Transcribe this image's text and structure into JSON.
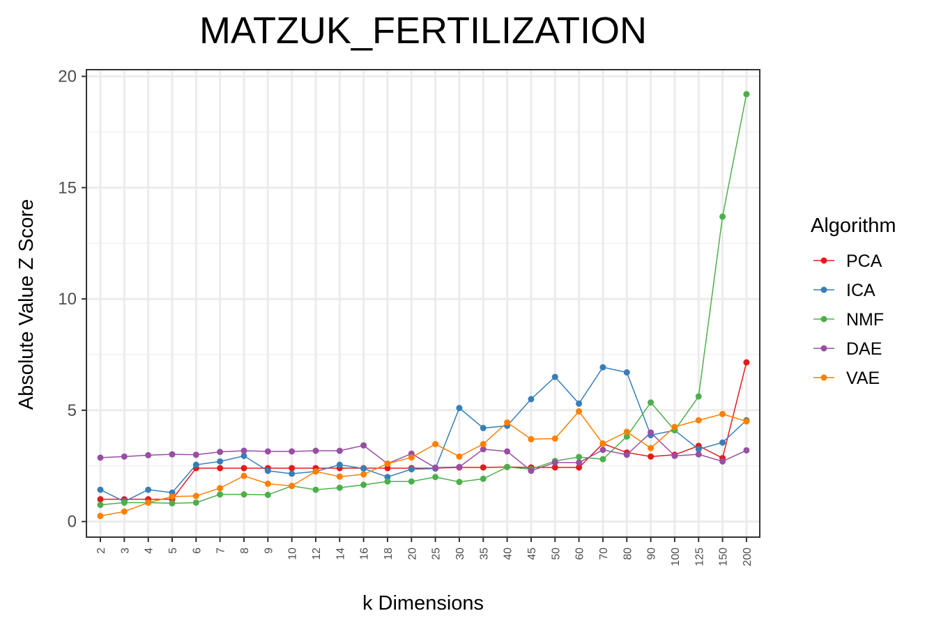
{
  "chart_data": {
    "type": "line",
    "title": "MATZUK_FERTILIZATION",
    "xlabel": "k Dimensions",
    "ylabel": "Absolute Value Z Score",
    "ylim": [
      -0.7,
      20.3
    ],
    "yticks": [
      0,
      5,
      10,
      15,
      20
    ],
    "grid": true,
    "legend": {
      "title": "Algorithm",
      "position": "right"
    },
    "categories": [
      "2",
      "3",
      "4",
      "5",
      "6",
      "7",
      "8",
      "9",
      "10",
      "12",
      "14",
      "16",
      "18",
      "20",
      "25",
      "30",
      "35",
      "40",
      "45",
      "50",
      "60",
      "70",
      "80",
      "90",
      "100",
      "125",
      "150",
      "200"
    ],
    "series": [
      {
        "name": "PCA",
        "color": "#e41a1c",
        "values": [
          1.0,
          1.0,
          1.0,
          1.0,
          2.4,
          2.4,
          2.4,
          2.4,
          2.4,
          2.4,
          2.4,
          2.4,
          2.4,
          2.4,
          2.4,
          2.43,
          2.43,
          2.45,
          2.43,
          2.43,
          2.43,
          3.5,
          3.1,
          2.92,
          3.0,
          3.4,
          2.85,
          7.15
        ]
      },
      {
        "name": "ICA",
        "color": "#377eb8",
        "values": [
          1.43,
          0.9,
          1.43,
          1.3,
          2.55,
          2.7,
          2.95,
          2.28,
          2.15,
          2.25,
          2.55,
          2.38,
          2.0,
          2.35,
          2.38,
          5.1,
          4.2,
          4.3,
          5.5,
          6.5,
          5.3,
          6.93,
          6.7,
          3.88,
          4.1,
          3.25,
          3.55,
          4.55
        ]
      },
      {
        "name": "NMF",
        "color": "#4daf4a",
        "values": [
          0.75,
          0.85,
          0.85,
          0.82,
          0.85,
          1.22,
          1.22,
          1.2,
          1.6,
          1.43,
          1.52,
          1.65,
          1.8,
          1.8,
          2.0,
          1.78,
          1.92,
          2.45,
          2.35,
          2.72,
          2.9,
          2.8,
          3.82,
          5.35,
          4.1,
          5.62,
          13.7,
          19.2
        ]
      },
      {
        "name": "DAE",
        "color": "#984ea3",
        "values": [
          2.87,
          2.92,
          2.98,
          3.02,
          3.0,
          3.13,
          3.18,
          3.15,
          3.15,
          3.18,
          3.18,
          3.42,
          2.6,
          3.05,
          2.42,
          2.45,
          3.25,
          3.15,
          2.28,
          2.65,
          2.65,
          3.22,
          3.0,
          4.0,
          2.95,
          3.02,
          2.7,
          3.2
        ]
      },
      {
        "name": "VAE",
        "color": "#ff7f00",
        "values": [
          0.25,
          0.45,
          0.85,
          1.12,
          1.15,
          1.5,
          2.05,
          1.7,
          1.6,
          2.25,
          2.02,
          2.12,
          2.6,
          2.88,
          3.48,
          2.92,
          3.48,
          4.45,
          3.7,
          3.73,
          4.95,
          3.5,
          4.03,
          3.3,
          4.25,
          4.55,
          4.83,
          4.5
        ]
      }
    ]
  }
}
